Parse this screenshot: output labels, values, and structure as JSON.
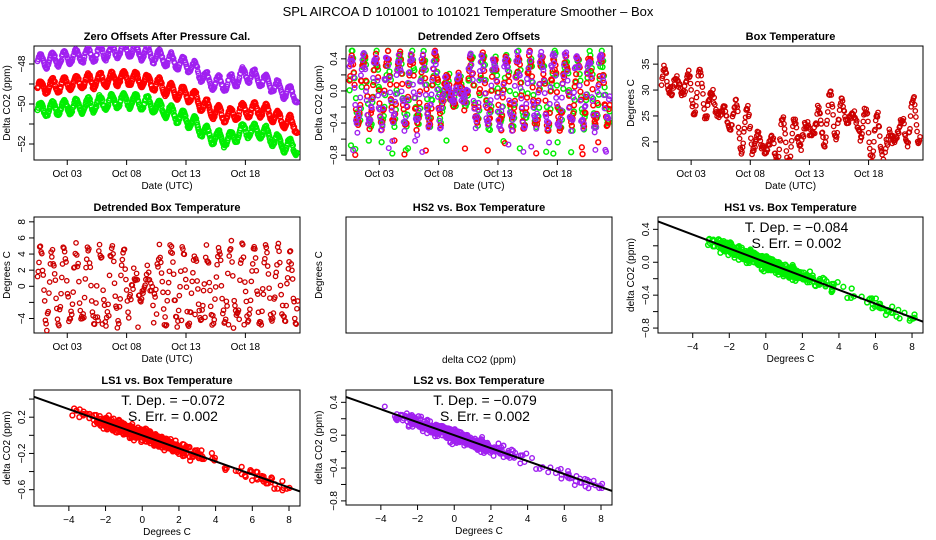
{
  "title": "SPL   AIRCOA D   101001 to 101021   Temperature Smoother – Box",
  "colors": {
    "HS1": "#00ee00",
    "LS1": "#ff0000",
    "LS2": "#a020f0",
    "LS2_edge": "#0000ff",
    "box": "#cc0000",
    "box_edge": "#000000",
    "fit": "#000000"
  },
  "chart_data": [
    {
      "id": "zero-offsets",
      "type": "scatter",
      "title": "Zero Offsets After Pressure Cal.",
      "xlabel": "Date (UTC)",
      "ylabel": "Delta CO2 (ppm)",
      "xlim": [
        1.2,
        23.6
      ],
      "ylim": [
        -52.8,
        -47.1
      ],
      "xticks": [
        {
          "v": 4,
          "label": "Oct 03"
        },
        {
          "v": 9,
          "label": "Oct 08"
        },
        {
          "v": 14,
          "label": "Oct 13"
        },
        {
          "v": 19,
          "label": "Oct 18"
        }
      ],
      "yticks": [
        {
          "v": -48,
          "label": "-48"
        },
        {
          "v": -49,
          "label": ""
        },
        {
          "v": -50,
          "label": "-50"
        },
        {
          "v": -51,
          "label": ""
        },
        {
          "v": -52,
          "label": "-52"
        }
      ],
      "series": [
        {
          "name": "LS2",
          "color": "LS2",
          "base": [
            [
              1.5,
              -47.9
            ],
            [
              5,
              -47.6
            ],
            [
              9,
              -47.3
            ],
            [
              11,
              -47.5
            ],
            [
              13,
              -47.9
            ],
            [
              14.5,
              -48.1
            ],
            [
              16,
              -48.9
            ],
            [
              17.5,
              -49.0
            ],
            [
              19,
              -48.5
            ],
            [
              20.5,
              -48.8
            ],
            [
              22,
              -49.3
            ],
            [
              23.4,
              -49.6
            ]
          ],
          "amp": 0.35
        },
        {
          "name": "LS1",
          "color": "LS1",
          "base": [
            [
              1.5,
              -49.2
            ],
            [
              5,
              -48.9
            ],
            [
              9,
              -48.7
            ],
            [
              11,
              -48.9
            ],
            [
              13,
              -49.4
            ],
            [
              14.5,
              -49.6
            ],
            [
              16,
              -50.3
            ],
            [
              17.5,
              -50.6
            ],
            [
              19,
              -50.3
            ],
            [
              20.5,
              -50.3
            ],
            [
              22,
              -50.8
            ],
            [
              23.4,
              -51.1
            ]
          ],
          "amp": 0.35
        },
        {
          "name": "HS1",
          "color": "HS1",
          "base": [
            [
              1.5,
              -50.3
            ],
            [
              5,
              -50.1
            ],
            [
              9,
              -49.8
            ],
            [
              11,
              -50.0
            ],
            [
              13,
              -50.5
            ],
            [
              14.5,
              -50.9
            ],
            [
              16,
              -51.6
            ],
            [
              17.5,
              -51.8
            ],
            [
              19,
              -51.3
            ],
            [
              20.5,
              -51.4
            ],
            [
              22,
              -52.0
            ],
            [
              23.4,
              -52.2
            ]
          ],
          "amp": 0.35
        }
      ]
    },
    {
      "id": "detrended-zero-offsets",
      "type": "scatter",
      "title": "Detrended Zero Offsets",
      "xlabel": "Date (UTC)",
      "ylabel": "Delta CO2 (ppm)",
      "xlim": [
        1.2,
        23.6
      ],
      "ylim": [
        -0.86,
        0.56
      ],
      "xticks": [
        {
          "v": 4,
          "label": "Oct 03"
        },
        {
          "v": 9,
          "label": "Oct 08"
        },
        {
          "v": 14,
          "label": "Oct 13"
        },
        {
          "v": 19,
          "label": "Oct 18"
        }
      ],
      "yticks": [
        {
          "v": 0.4,
          "label": "0.4"
        },
        {
          "v": 0.2,
          "label": ""
        },
        {
          "v": 0.0,
          "label": "0.0"
        },
        {
          "v": -0.2,
          "label": ""
        },
        {
          "v": -0.4,
          "label": "-0.4"
        },
        {
          "v": -0.6,
          "label": ""
        },
        {
          "v": -0.8,
          "label": "-0.8"
        }
      ],
      "series": [
        {
          "name": "HS1",
          "color": "HS1"
        },
        {
          "name": "LS1",
          "color": "LS1"
        },
        {
          "name": "LS2",
          "color": "LS2"
        }
      ],
      "range": [
        -0.8,
        0.5
      ]
    },
    {
      "id": "box-temperature",
      "type": "scatter",
      "title": "Box Temperature",
      "xlabel": "Date (UTC)",
      "ylabel": "Degrees C",
      "xlim": [
        1.2,
        23.6
      ],
      "ylim": [
        16.5,
        38.5
      ],
      "xticks": [
        {
          "v": 4,
          "label": "Oct 03"
        },
        {
          "v": 9,
          "label": "Oct 08"
        },
        {
          "v": 14,
          "label": "Oct 13"
        },
        {
          "v": 19,
          "label": "Oct 18"
        }
      ],
      "yticks": [
        {
          "v": 35,
          "label": "35"
        },
        {
          "v": 30,
          "label": "30"
        },
        {
          "v": 25,
          "label": "25"
        },
        {
          "v": 20,
          "label": "20"
        }
      ],
      "series": [
        {
          "name": "Box",
          "color": "box",
          "base": [
            [
              1.5,
              31
            ],
            [
              3,
              31
            ],
            [
              5,
              29
            ],
            [
              7,
              25
            ],
            [
              9,
              22
            ],
            [
              10,
              19
            ],
            [
              11.5,
              19.5
            ],
            [
              13,
              21
            ],
            [
              14.5,
              23
            ],
            [
              16,
              25
            ],
            [
              17.5,
              25
            ],
            [
              19,
              22
            ],
            [
              20.5,
              19
            ],
            [
              21.5,
              22
            ],
            [
              23.4,
              25
            ]
          ],
          "amp": 5
        }
      ]
    },
    {
      "id": "detrended-box-temperature",
      "type": "scatter",
      "title": "Detrended Box Temperature",
      "xlabel": "Date (UTC)",
      "ylabel": "Degrees C",
      "xlim": [
        1.2,
        23.6
      ],
      "ylim": [
        -5.8,
        8.6
      ],
      "xticks": [
        {
          "v": 4,
          "label": "Oct 03"
        },
        {
          "v": 9,
          "label": "Oct 08"
        },
        {
          "v": 14,
          "label": "Oct 13"
        },
        {
          "v": 19,
          "label": "Oct 18"
        }
      ],
      "yticks": [
        {
          "v": 8,
          "label": "8"
        },
        {
          "v": 6,
          "label": "6"
        },
        {
          "v": 4,
          "label": "4"
        },
        {
          "v": 2,
          "label": "2"
        },
        {
          "v": 0,
          "label": "0"
        },
        {
          "v": -2,
          "label": ""
        },
        {
          "v": -4,
          "label": "-4"
        }
      ],
      "series": [
        {
          "name": "Box",
          "color": "box"
        }
      ],
      "range": [
        -5.5,
        8.2
      ]
    },
    {
      "id": "hs2-vs-box",
      "type": "scatter",
      "title": "HS2 vs. Box Temperature",
      "xlabel": "delta CO2 (ppm)",
      "ylabel": "Degrees C",
      "empty": true
    },
    {
      "id": "hs1-vs-box",
      "type": "scatter",
      "title": "HS1 vs. Box Temperature",
      "xlabel": "Degrees C",
      "ylabel": "delta CO2 (ppm)",
      "xlim": [
        -5.9,
        8.6
      ],
      "ylim": [
        -0.86,
        0.55
      ],
      "xticks": [
        {
          "v": -4,
          "label": "-4"
        },
        {
          "v": -2,
          "label": "-2"
        },
        {
          "v": 0,
          "label": "0"
        },
        {
          "v": 2,
          "label": "2"
        },
        {
          "v": 4,
          "label": "4"
        },
        {
          "v": 6,
          "label": "6"
        },
        {
          "v": 8,
          "label": "8"
        }
      ],
      "yticks": [
        {
          "v": 0.4,
          "label": "0.4"
        },
        {
          "v": 0.2,
          "label": ""
        },
        {
          "v": 0.0,
          "label": "0.0"
        },
        {
          "v": -0.2,
          "label": ""
        },
        {
          "v": -0.4,
          "label": "-0.4"
        },
        {
          "v": -0.6,
          "label": ""
        },
        {
          "v": -0.8,
          "label": "-0.8"
        }
      ],
      "series": [
        {
          "name": "HS1",
          "color": "HS1"
        }
      ],
      "fit": {
        "slope": -0.084,
        "intercept": 0.0
      },
      "annotation": {
        "tdep": "T. Dep. =  −0.084",
        "serr": "S. Err. =  0.002"
      }
    },
    {
      "id": "ls1-vs-box",
      "type": "scatter",
      "title": "LS1 vs. Box Temperature",
      "xlabel": "Degrees C",
      "ylabel": "delta CO2 (ppm)",
      "xlim": [
        -5.9,
        8.6
      ],
      "ylim": [
        -0.78,
        0.5
      ],
      "xticks": [
        {
          "v": -4,
          "label": "-4"
        },
        {
          "v": -2,
          "label": "-2"
        },
        {
          "v": 0,
          "label": "0"
        },
        {
          "v": 2,
          "label": "2"
        },
        {
          "v": 4,
          "label": "4"
        },
        {
          "v": 6,
          "label": "6"
        },
        {
          "v": 8,
          "label": "8"
        }
      ],
      "yticks": [
        {
          "v": 0.4,
          "label": ""
        },
        {
          "v": 0.2,
          "label": "0.2"
        },
        {
          "v": 0.0,
          "label": ""
        },
        {
          "v": -0.2,
          "label": "-0.2"
        },
        {
          "v": -0.4,
          "label": ""
        },
        {
          "v": -0.6,
          "label": "-0.6"
        }
      ],
      "series": [
        {
          "name": "LS1",
          "color": "LS1"
        }
      ],
      "fit": {
        "slope": -0.072,
        "intercept": 0.0
      },
      "annotation": {
        "tdep": "T. Dep. =  −0.072",
        "serr": "S. Err. =  0.002"
      }
    },
    {
      "id": "ls2-vs-box",
      "type": "scatter",
      "title": "LS2 vs. Box Temperature",
      "xlabel": "Degrees C",
      "ylabel": "delta CO2 (ppm)",
      "xlim": [
        -5.9,
        8.6
      ],
      "ylim": [
        -0.85,
        0.55
      ],
      "xticks": [
        {
          "v": -4,
          "label": "-4"
        },
        {
          "v": -2,
          "label": "-2"
        },
        {
          "v": 0,
          "label": "0"
        },
        {
          "v": 2,
          "label": "2"
        },
        {
          "v": 4,
          "label": "4"
        },
        {
          "v": 6,
          "label": "6"
        },
        {
          "v": 8,
          "label": "8"
        }
      ],
      "yticks": [
        {
          "v": 0.4,
          "label": "0.4"
        },
        {
          "v": 0.2,
          "label": ""
        },
        {
          "v": 0.0,
          "label": "0.0"
        },
        {
          "v": -0.2,
          "label": ""
        },
        {
          "v": -0.4,
          "label": "-0.4"
        },
        {
          "v": -0.6,
          "label": ""
        },
        {
          "v": -0.8,
          "label": "-0.8"
        }
      ],
      "series": [
        {
          "name": "LS2",
          "color": "LS2"
        }
      ],
      "fit": {
        "slope": -0.079,
        "intercept": 0.0
      },
      "annotation": {
        "tdep": "T. Dep. =  −0.079",
        "serr": "S. Err. =  0.002"
      }
    }
  ]
}
